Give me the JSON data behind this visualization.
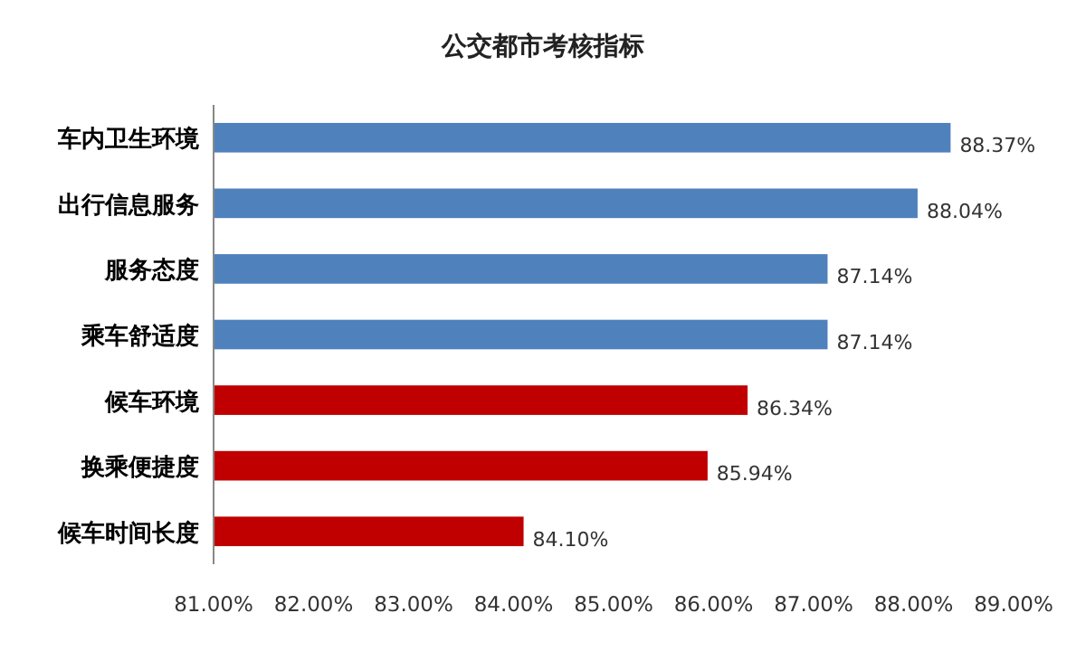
{
  "chart_data": {
    "type": "bar",
    "orientation": "horizontal",
    "title": "公交都市考核指标",
    "categories": [
      "车内卫生环境",
      "出行信息服务",
      "服务态度",
      "乘车舒适度",
      "候车环境",
      "换乘便捷度",
      "候车时间长度"
    ],
    "values": [
      88.37,
      88.04,
      87.14,
      87.14,
      86.34,
      85.94,
      84.1
    ],
    "colors": [
      "#4f81bd",
      "#4f81bd",
      "#4f81bd",
      "#4f81bd",
      "#c00000",
      "#c00000",
      "#c00000"
    ],
    "value_labels": [
      "88.37%",
      "88.04%",
      "87.14%",
      "87.14%",
      "86.34%",
      "85.94%",
      "84.10%"
    ],
    "xlim": [
      81,
      89
    ],
    "xticks": [
      {
        "value": 81,
        "label": "81.00%"
      },
      {
        "value": 82,
        "label": "82.00%"
      },
      {
        "value": 83,
        "label": "83.00%"
      },
      {
        "value": 84,
        "label": "84.00%"
      },
      {
        "value": 85,
        "label": "85.00%"
      },
      {
        "value": 86,
        "label": "86.00%"
      },
      {
        "value": 87,
        "label": "87.00%"
      },
      {
        "value": 88,
        "label": "88.00%"
      },
      {
        "value": 89,
        "label": "89.00%"
      }
    ]
  }
}
